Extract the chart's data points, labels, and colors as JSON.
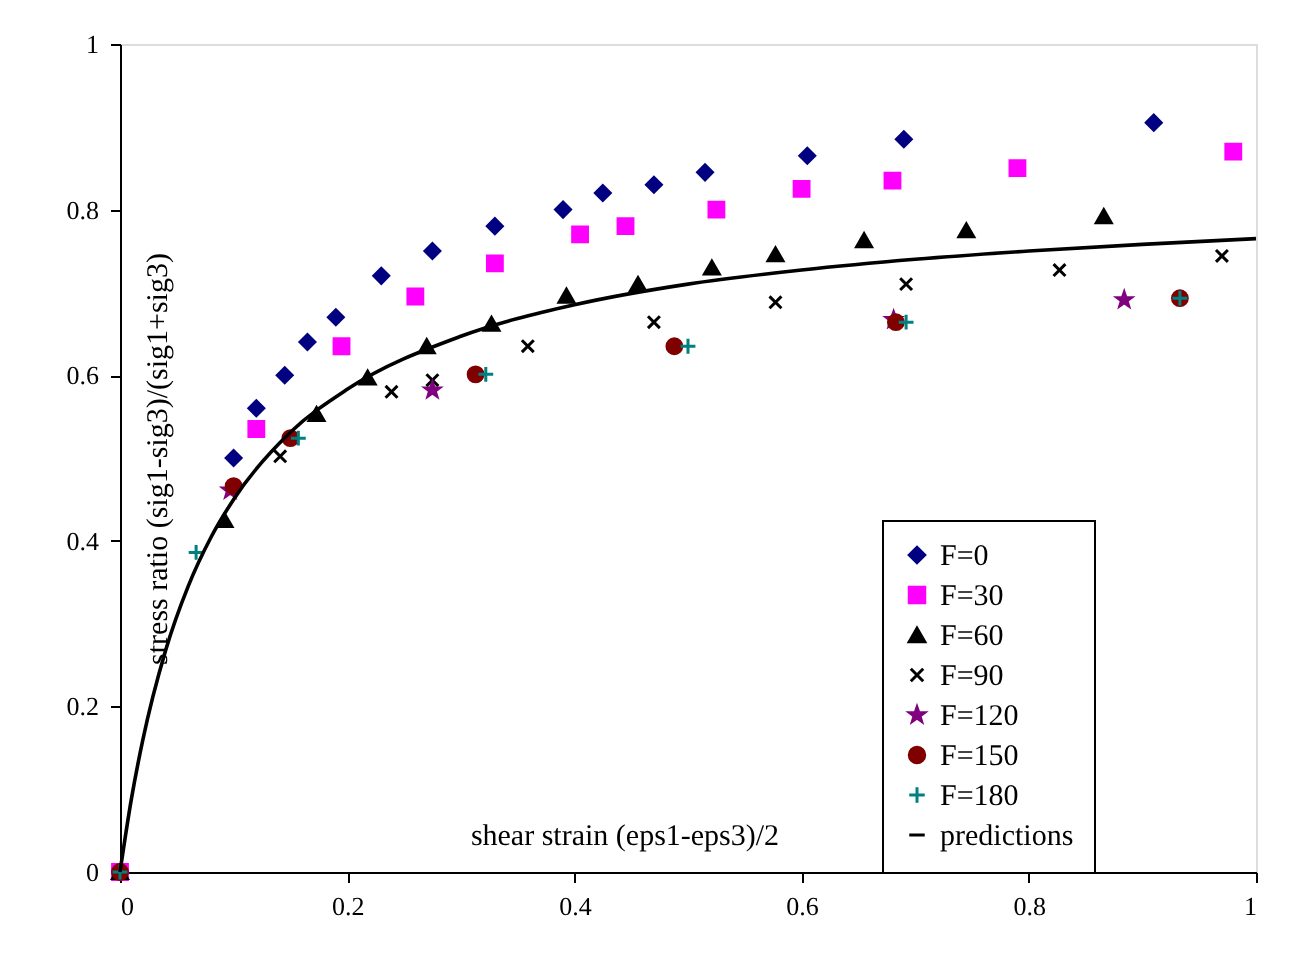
{
  "chart_data": {
    "type": "scatter",
    "xlabel": "shear strain (eps1-eps3)/2",
    "ylabel": "stress ratio (sig1-sig3)/(sig1+sig3)",
    "xlim": [
      0,
      1
    ],
    "ylim": [
      0,
      1
    ],
    "xticks": [
      0,
      0.2,
      0.4,
      0.6,
      0.8,
      1
    ],
    "yticks": [
      0,
      0.2,
      0.4,
      0.6,
      0.8,
      1
    ],
    "grid": false,
    "legend": "right",
    "series": [
      {
        "name": "F=0",
        "color": "#000080",
        "marker": "diamond",
        "x": [
          0.1,
          0.12,
          0.145,
          0.165,
          0.19,
          0.23,
          0.275,
          0.33,
          0.39,
          0.425,
          0.47,
          0.515,
          0.605,
          0.69,
          0.91
        ],
        "values": [
          0.5,
          0.56,
          0.6,
          0.64,
          0.67,
          0.72,
          0.75,
          0.78,
          0.8,
          0.82,
          0.83,
          0.845,
          0.865,
          0.885,
          0.905
        ]
      },
      {
        "name": "F=30",
        "color": "#ff00ff",
        "marker": "square",
        "x": [
          0,
          0.12,
          0.195,
          0.26,
          0.33,
          0.405,
          0.445,
          0.525,
          0.6,
          0.68,
          0.79,
          0.98
        ],
        "values": [
          0,
          0.535,
          0.635,
          0.695,
          0.735,
          0.77,
          0.78,
          0.8,
          0.825,
          0.835,
          0.85,
          0.87
        ]
      },
      {
        "name": "F=60",
        "color": "#000000",
        "marker": "triangle",
        "x": [
          0,
          0.092,
          0.173,
          0.218,
          0.27,
          0.327,
          0.393,
          0.456,
          0.521,
          0.577,
          0.655,
          0.745,
          0.866
        ],
        "values": [
          0,
          0.425,
          0.553,
          0.597,
          0.635,
          0.662,
          0.696,
          0.71,
          0.73,
          0.746,
          0.763,
          0.775,
          0.792
        ]
      },
      {
        "name": "F=90",
        "color": "#000000",
        "marker": "x",
        "x": [
          0,
          0.141,
          0.239,
          0.275,
          0.359,
          0.47,
          0.577,
          0.692,
          0.827,
          0.97
        ],
        "values": [
          0,
          0.502,
          0.58,
          0.594,
          0.635,
          0.664,
          0.688,
          0.71,
          0.727,
          0.744
        ]
      },
      {
        "name": "F=120",
        "color": "#800080",
        "marker": "star",
        "x": [
          0.097,
          0.275,
          0.681,
          0.884
        ],
        "values": [
          0.461,
          0.582,
          0.667,
          0.691
        ]
      },
      {
        "name": "F=150",
        "color": "#800000",
        "marker": "circle",
        "x": [
          0,
          0.1,
          0.15,
          0.313,
          0.488,
          0.683,
          0.933
        ],
        "values": [
          0,
          0.466,
          0.524,
          0.601,
          0.635,
          0.664,
          0.693
        ]
      },
      {
        "name": "F=180",
        "color": "#008080",
        "marker": "cross",
        "x": [
          0,
          0.067,
          0.157,
          0.322,
          0.5,
          0.692,
          0.933
        ],
        "values": [
          0,
          0.386,
          0.524,
          0.601,
          0.635,
          0.664,
          0.693
        ]
      },
      {
        "name": "predictions",
        "color": "#000000",
        "type": "line",
        "marker": "none",
        "line_style": "solid",
        "x": [
          0,
          0.01,
          0.02,
          0.04,
          0.06,
          0.08,
          0.1,
          0.15,
          0.2,
          0.3,
          0.4,
          0.5,
          0.6,
          0.7,
          0.8,
          0.9,
          1.0
        ],
        "values": [
          0,
          0.088,
          0.159,
          0.267,
          0.345,
          0.404,
          0.45,
          0.531,
          0.583,
          0.647,
          0.685,
          0.71,
          0.727,
          0.74,
          0.75,
          0.758,
          0.765
        ]
      }
    ]
  }
}
